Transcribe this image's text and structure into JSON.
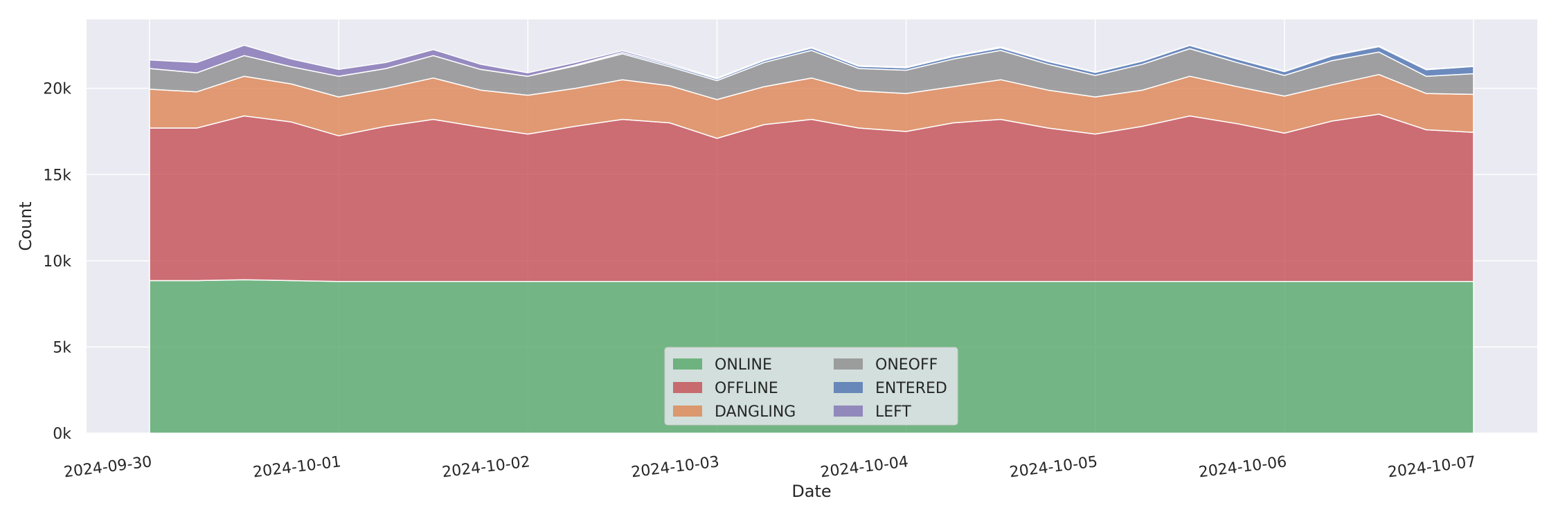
{
  "chart_data": {
    "type": "area",
    "stacked": true,
    "title": "",
    "xlabel": "Date",
    "ylabel": "Count",
    "x_range": [
      "2024-09-30T00:00",
      "2024-10-07T00:00"
    ],
    "x_start": "2024-09-30T00:00",
    "x_end": "2024-10-07T00:00",
    "ylim": [
      0,
      24000
    ],
    "xticks": [
      "2024-09-30",
      "2024-10-01",
      "2024-10-02",
      "2024-10-03",
      "2024-10-04",
      "2024-10-05",
      "2024-10-06",
      "2024-10-07"
    ],
    "yticks": [
      {
        "value": 0,
        "label": "0k"
      },
      {
        "value": 5000,
        "label": "5k"
      },
      {
        "value": 10000,
        "label": "10k"
      },
      {
        "value": 15000,
        "label": "15k"
      },
      {
        "value": 20000,
        "label": "20k"
      }
    ],
    "grid": true,
    "legend_position": "bottom-center",
    "x": [
      "2024-09-30T00:00",
      "2024-09-30T06:00",
      "2024-09-30T12:00",
      "2024-09-30T18:00",
      "2024-10-01T00:00",
      "2024-10-01T06:00",
      "2024-10-01T12:00",
      "2024-10-01T18:00",
      "2024-10-02T00:00",
      "2024-10-02T06:00",
      "2024-10-02T12:00",
      "2024-10-02T18:00",
      "2024-10-03T00:00",
      "2024-10-03T06:00",
      "2024-10-03T12:00",
      "2024-10-03T18:00",
      "2024-10-04T00:00",
      "2024-10-04T06:00",
      "2024-10-04T12:00",
      "2024-10-04T18:00",
      "2024-10-05T00:00",
      "2024-10-05T06:00",
      "2024-10-05T12:00",
      "2024-10-05T18:00",
      "2024-10-06T00:00",
      "2024-10-06T06:00",
      "2024-10-06T12:00",
      "2024-10-06T18:00",
      "2024-10-07T00:00"
    ],
    "series": [
      {
        "name": "ONLINE",
        "color": "#55a868",
        "values": [
          8850,
          8850,
          8900,
          8850,
          8800,
          8800,
          8800,
          8800,
          8800,
          8800,
          8800,
          8800,
          8800,
          8800,
          8800,
          8800,
          8800,
          8800,
          8800,
          8800,
          8800,
          8800,
          8800,
          8800,
          8800,
          8800,
          8800,
          8800,
          8800
        ]
      },
      {
        "name": "OFFLINE",
        "color": "#c44e52",
        "values": [
          8850,
          8850,
          9500,
          9200,
          8450,
          9000,
          9400,
          8950,
          8550,
          9000,
          9400,
          9200,
          8300,
          9100,
          9400,
          8900,
          8700,
          9200,
          9400,
          8900,
          8550,
          9000,
          9600,
          9150,
          8600,
          9300,
          9700,
          8800,
          8650
        ]
      },
      {
        "name": "DANGLING",
        "color": "#dd8452",
        "values": [
          2250,
          2100,
          2300,
          2200,
          2250,
          2200,
          2400,
          2150,
          2250,
          2200,
          2300,
          2150,
          2250,
          2200,
          2400,
          2150,
          2200,
          2100,
          2300,
          2200,
          2150,
          2100,
          2300,
          2150,
          2150,
          2100,
          2300,
          2100,
          2200
        ]
      },
      {
        "name": "ONEOFF",
        "color": "#8c8c8c",
        "values": [
          1200,
          1100,
          1200,
          1000,
          1200,
          1150,
          1300,
          1200,
          1100,
          1300,
          1500,
          1100,
          1100,
          1400,
          1600,
          1300,
          1350,
          1600,
          1700,
          1500,
          1250,
          1500,
          1600,
          1400,
          1200,
          1400,
          1300,
          1000,
          1200
        ]
      },
      {
        "name": "ENTERED",
        "color": "#4c72b0",
        "values": [
          0,
          0,
          0,
          0,
          0,
          0,
          0,
          0,
          0,
          50,
          80,
          100,
          100,
          120,
          140,
          130,
          140,
          150,
          150,
          160,
          170,
          180,
          190,
          200,
          220,
          280,
          320,
          380,
          420
        ]
      },
      {
        "name": "LEFT",
        "color": "#8172b3",
        "values": [
          500,
          600,
          600,
          450,
          400,
          350,
          350,
          300,
          200,
          150,
          100,
          80,
          50,
          40,
          40,
          40,
          40,
          50,
          60,
          40,
          20,
          20,
          20,
          20,
          20,
          30,
          40,
          30,
          20
        ]
      }
    ]
  }
}
